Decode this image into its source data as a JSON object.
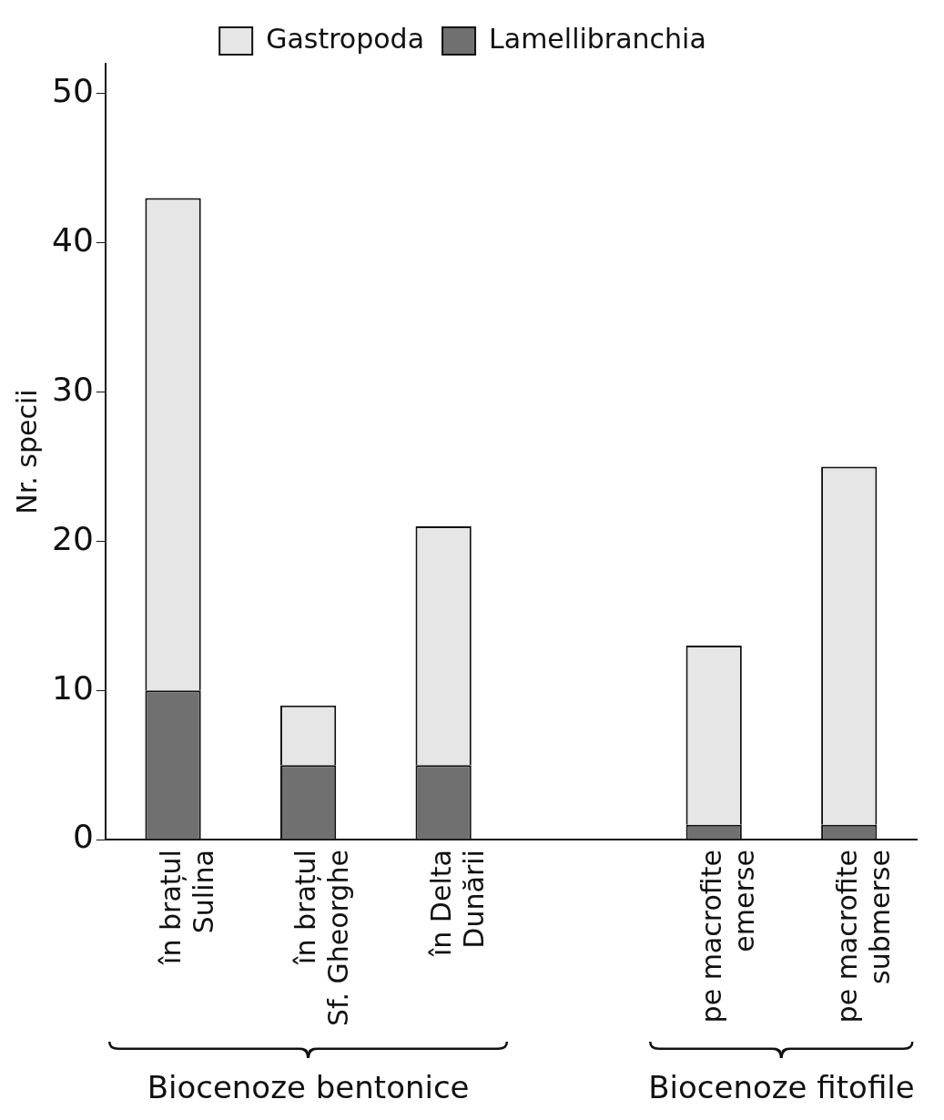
{
  "chart_data": {
    "type": "bar",
    "stacked": true,
    "ylabel": "Nr. specii",
    "categories": [
      "în brațul\nSulina",
      "în brațul\nSf. Gheorghe",
      "în Delta\nDunării",
      null,
      "pe macrofite\nemerse",
      "pe macrofite\nsubmerse"
    ],
    "series": [
      {
        "name": "Lamellibranchia",
        "color": "#707070",
        "values": [
          10,
          5,
          5,
          null,
          1,
          1
        ]
      },
      {
        "name": "Gastropoda",
        "color": "#e6e6e6",
        "values": [
          33,
          4,
          16,
          null,
          12,
          24
        ]
      }
    ],
    "ylim": [
      0,
      52
    ],
    "yticks": [
      0,
      10,
      20,
      30,
      40,
      50
    ],
    "grid": false,
    "legend": "top",
    "annotations": [
      "Biocenoze bentonice",
      "Biocenoze fitofile"
    ]
  }
}
